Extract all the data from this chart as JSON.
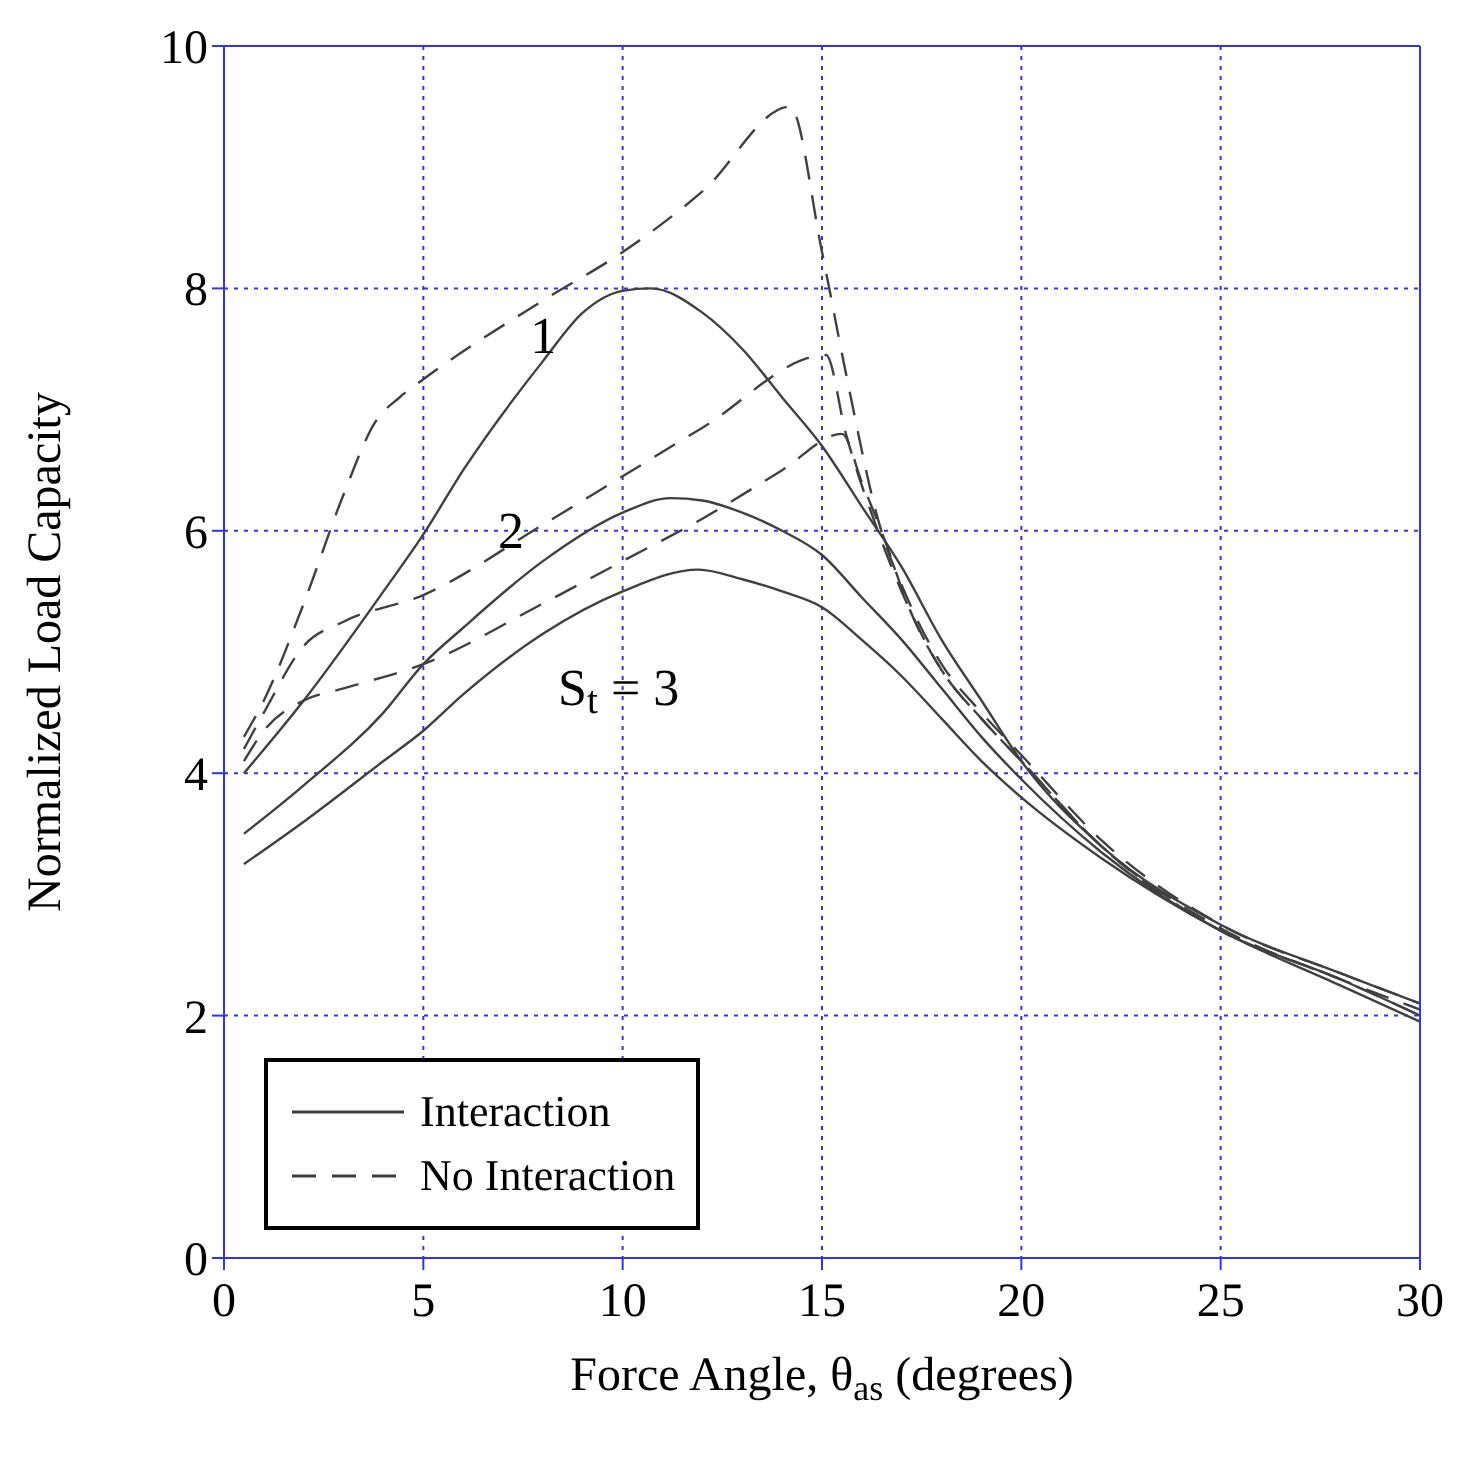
{
  "chart_data": {
    "type": "line",
    "xlabel": "Force Angle, θ$_{as}$ (degrees)",
    "ylabel": "Normalized Load Capacity",
    "xlim": [
      0,
      30
    ],
    "xticks": [
      0,
      5,
      10,
      15,
      20,
      25,
      30
    ],
    "ylim": [
      0,
      10
    ],
    "yticks": [
      0,
      2,
      4,
      6,
      8,
      10
    ],
    "grid": true,
    "legend": "bottom left",
    "marker": "none",
    "series": [
      {
        "name": "Interaction",
        "color": "#404040",
        "line_style": "solid",
        "x": [
          0.5,
          2,
          4,
          5,
          6,
          8,
          9,
          10,
          10.7,
          12,
          13,
          14,
          15,
          16,
          17,
          18,
          19,
          20,
          22,
          25,
          28,
          30
        ],
        "values": [
          4.0,
          4.6,
          5.5,
          5.97,
          6.5,
          7.4,
          7.8,
          7.98,
          8.0,
          7.8,
          7.5,
          7.1,
          6.7,
          6.2,
          5.7,
          5.1,
          4.6,
          4.1,
          3.4,
          2.75,
          2.35,
          2.1
        ]
      },
      {
        "color": "#404040",
        "line_style": "solid",
        "x": [
          0.5,
          2,
          4,
          5,
          6,
          8,
          10,
          11.2,
          12,
          13,
          14,
          15,
          16,
          17,
          18,
          19,
          20,
          22,
          25,
          28,
          30
        ],
        "values": [
          3.5,
          3.9,
          4.5,
          4.9,
          5.2,
          5.75,
          6.15,
          6.27,
          6.25,
          6.15,
          6.0,
          5.8,
          5.45,
          5.1,
          4.7,
          4.3,
          3.95,
          3.35,
          2.7,
          2.3,
          2.0
        ]
      },
      {
        "color": "#404040",
        "line_style": "solid",
        "x": [
          0.5,
          2,
          4,
          5,
          6,
          8,
          10,
          11.9,
          13,
          14,
          15,
          16,
          17,
          18,
          19,
          20,
          22,
          25,
          28,
          30
        ],
        "values": [
          3.25,
          3.6,
          4.1,
          4.35,
          4.65,
          5.15,
          5.5,
          5.68,
          5.6,
          5.5,
          5.37,
          5.1,
          4.8,
          4.45,
          4.1,
          3.8,
          3.3,
          2.7,
          2.25,
          1.95
        ]
      },
      {
        "name": "No Interaction",
        "color": "#404040",
        "line_style": "dashed",
        "x": [
          0.5,
          1,
          2,
          3,
          3.8,
          4.4,
          5,
          8,
          10,
          12,
          14.2,
          15,
          15.6,
          16.4,
          17.2,
          18,
          19,
          20,
          22,
          25,
          28,
          30
        ],
        "values": [
          4.3,
          4.6,
          5.4,
          6.3,
          6.9,
          7.1,
          7.25,
          7.9,
          8.3,
          8.8,
          9.5,
          8.3,
          7.3,
          6.1,
          5.4,
          4.9,
          4.5,
          4.15,
          3.45,
          2.75,
          2.35,
          2.1
        ]
      },
      {
        "color": "#404040",
        "line_style": "dashed",
        "x": [
          0.5,
          1,
          2,
          3,
          5,
          8,
          10,
          12,
          15.1,
          15.6,
          16.4,
          17.2,
          18,
          19,
          20,
          22,
          25,
          28,
          30
        ],
        "values": [
          4.2,
          4.5,
          5.05,
          5.25,
          5.47,
          6.05,
          6.45,
          6.85,
          7.45,
          6.8,
          6.0,
          5.35,
          4.85,
          4.45,
          4.1,
          3.4,
          2.72,
          2.3,
          2.05
        ]
      },
      {
        "color": "#404040",
        "line_style": "dashed",
        "x": [
          0.5,
          1,
          2,
          3,
          5,
          8,
          10,
          12,
          14,
          15.5,
          16,
          16.6,
          17.2,
          18,
          19,
          20,
          22,
          25,
          28,
          30
        ],
        "values": [
          4.1,
          4.35,
          4.6,
          4.7,
          4.9,
          5.4,
          5.75,
          6.1,
          6.5,
          6.8,
          6.4,
          5.9,
          5.35,
          4.85,
          4.45,
          4.1,
          3.4,
          2.7,
          2.3,
          2.0
        ]
      }
    ],
    "annotations": [
      "1",
      "2",
      "S$_{t}$ = 3"
    ]
  }
}
